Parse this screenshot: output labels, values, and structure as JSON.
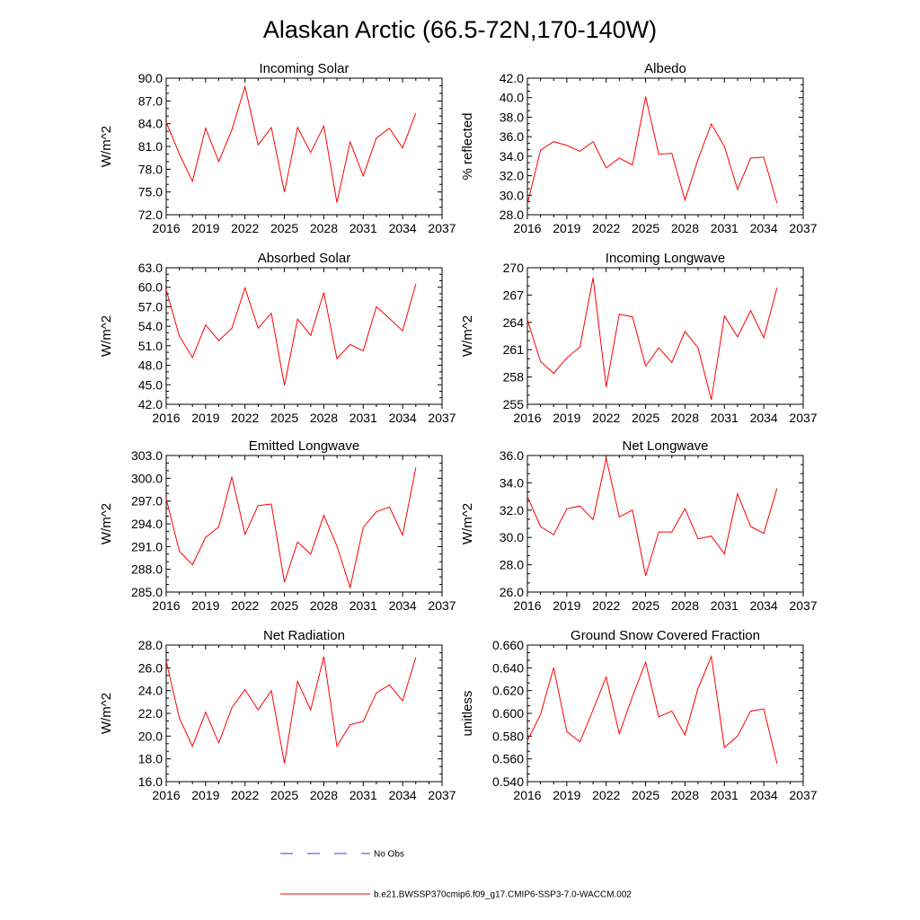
{
  "title": "Alaskan Arctic (66.5-72N,170-140W)",
  "legend": {
    "obs_label": "No Obs",
    "obs_color": "#3b3bd6",
    "model_label": "b.e21.BWSSP370cmip6.f09_g17.CMIP6-SSP3-7.0-WACCM.002",
    "model_color": "#ff0000"
  },
  "chart_data": [
    {
      "type": "line",
      "title": "Incoming Solar",
      "ylabel": "W/m^2",
      "xlabel": "",
      "xlim": [
        2016,
        2037
      ],
      "ylim": [
        72.0,
        90.0
      ],
      "xticks": [
        2016,
        2019,
        2022,
        2025,
        2028,
        2031,
        2034,
        2037
      ],
      "yticks": [
        "72.0",
        "75.0",
        "78.0",
        "81.0",
        "84.0",
        "87.0",
        "90.0"
      ],
      "x": [
        2016,
        2017,
        2018,
        2019,
        2020,
        2021,
        2022,
        2023,
        2024,
        2025,
        2026,
        2027,
        2028,
        2029,
        2030,
        2031,
        2032,
        2033,
        2034,
        2035
      ],
      "series": [
        {
          "name": "b.e21.BWSSP370cmip6.f09_g17.CMIP6-SSP3-7.0-WACCM.002",
          "values": [
            84.2,
            80.0,
            76.4,
            83.4,
            79.0,
            83.2,
            88.9,
            81.2,
            83.5,
            75.0,
            83.5,
            80.2,
            83.7,
            73.6,
            81.6,
            77.1,
            82.1,
            83.4,
            80.8,
            85.4
          ]
        }
      ]
    },
    {
      "type": "line",
      "title": "Albedo",
      "ylabel": "% reflected",
      "xlabel": "",
      "xlim": [
        2016,
        2037
      ],
      "ylim": [
        28.0,
        42.0
      ],
      "xticks": [
        2016,
        2019,
        2022,
        2025,
        2028,
        2031,
        2034,
        2037
      ],
      "yticks": [
        "28.0",
        "30.0",
        "32.0",
        "34.0",
        "36.0",
        "38.0",
        "40.0",
        "42.0"
      ],
      "x": [
        2016,
        2017,
        2018,
        2019,
        2020,
        2021,
        2022,
        2023,
        2024,
        2025,
        2026,
        2027,
        2028,
        2029,
        2030,
        2031,
        2032,
        2033,
        2034,
        2035
      ],
      "series": [
        {
          "name": "b.e21.BWSSP370cmip6.f09_g17.CMIP6-SSP3-7.0-WACCM.002",
          "values": [
            29.1,
            34.6,
            35.5,
            35.1,
            34.5,
            35.5,
            32.8,
            33.8,
            33.1,
            40.1,
            34.2,
            34.3,
            29.5,
            33.7,
            37.3,
            35.0,
            30.6,
            33.8,
            33.9,
            29.2
          ]
        }
      ]
    },
    {
      "type": "line",
      "title": "Absorbed Solar",
      "ylabel": "W/m^2",
      "xlabel": "",
      "xlim": [
        2016,
        2037
      ],
      "ylim": [
        42.0,
        63.0
      ],
      "xticks": [
        2016,
        2019,
        2022,
        2025,
        2028,
        2031,
        2034,
        2037
      ],
      "yticks": [
        "42.0",
        "45.0",
        "48.0",
        "51.0",
        "54.0",
        "57.0",
        "60.0",
        "63.0"
      ],
      "x": [
        2016,
        2017,
        2018,
        2019,
        2020,
        2021,
        2022,
        2023,
        2024,
        2025,
        2026,
        2027,
        2028,
        2029,
        2030,
        2031,
        2032,
        2033,
        2034,
        2035
      ],
      "series": [
        {
          "name": "b.e21.BWSSP370cmip6.f09_g17.CMIP6-SSP3-7.0-WACCM.002",
          "values": [
            59.6,
            52.5,
            49.2,
            54.2,
            51.8,
            53.7,
            59.9,
            53.7,
            56.0,
            44.9,
            55.1,
            52.6,
            59.2,
            49.0,
            51.2,
            50.2,
            57.0,
            55.2,
            53.3,
            60.5
          ]
        }
      ]
    },
    {
      "type": "line",
      "title": "Incoming Longwave",
      "ylabel": "W/m^2",
      "xlabel": "",
      "xlim": [
        2016,
        2037
      ],
      "ylim": [
        255,
        270
      ],
      "xticks": [
        2016,
        2019,
        2022,
        2025,
        2028,
        2031,
        2034,
        2037
      ],
      "yticks": [
        "255",
        "258",
        "261",
        "264",
        "267",
        "270"
      ],
      "x": [
        2016,
        2017,
        2018,
        2019,
        2020,
        2021,
        2022,
        2023,
        2024,
        2025,
        2026,
        2027,
        2028,
        2029,
        2030,
        2031,
        2032,
        2033,
        2034,
        2035
      ],
      "series": [
        {
          "name": "b.e21.BWSSP370cmip6.f09_g17.CMIP6-SSP3-7.0-WACCM.002",
          "values": [
            264.3,
            259.7,
            258.4,
            260.1,
            261.3,
            268.9,
            256.9,
            264.9,
            264.6,
            259.2,
            261.2,
            259.6,
            263.0,
            261.2,
            255.5,
            264.7,
            262.4,
            265.3,
            262.3,
            267.8
          ]
        }
      ]
    },
    {
      "type": "line",
      "title": "Emitted Longwave",
      "ylabel": "W/m^2",
      "xlabel": "",
      "xlim": [
        2016,
        2037
      ],
      "ylim": [
        285.0,
        303.0
      ],
      "xticks": [
        2016,
        2019,
        2022,
        2025,
        2028,
        2031,
        2034,
        2037
      ],
      "yticks": [
        "285.0",
        "288.0",
        "291.0",
        "294.0",
        "297.0",
        "300.0",
        "303.0"
      ],
      "x": [
        2016,
        2017,
        2018,
        2019,
        2020,
        2021,
        2022,
        2023,
        2024,
        2025,
        2026,
        2027,
        2028,
        2029,
        2030,
        2031,
        2032,
        2033,
        2034,
        2035
      ],
      "series": [
        {
          "name": "b.e21.BWSSP370cmip6.f09_g17.CMIP6-SSP3-7.0-WACCM.002",
          "values": [
            297.3,
            290.4,
            288.6,
            292.2,
            293.6,
            300.2,
            292.6,
            296.4,
            296.6,
            286.3,
            291.6,
            290.0,
            295.1,
            291.1,
            285.6,
            293.5,
            295.6,
            296.2,
            292.5,
            301.4
          ]
        }
      ]
    },
    {
      "type": "line",
      "title": "Net Longwave",
      "ylabel": "W/m^2",
      "xlabel": "",
      "xlim": [
        2016,
        2037
      ],
      "ylim": [
        26.0,
        36.0
      ],
      "xticks": [
        2016,
        2019,
        2022,
        2025,
        2028,
        2031,
        2034,
        2037
      ],
      "yticks": [
        "26.0",
        "28.0",
        "30.0",
        "32.0",
        "34.0",
        "36.0"
      ],
      "x": [
        2016,
        2017,
        2018,
        2019,
        2020,
        2021,
        2022,
        2023,
        2024,
        2025,
        2026,
        2027,
        2028,
        2029,
        2030,
        2031,
        2032,
        2033,
        2034,
        2035
      ],
      "series": [
        {
          "name": "b.e21.BWSSP370cmip6.f09_g17.CMIP6-SSP3-7.0-WACCM.002",
          "values": [
            33.0,
            30.8,
            30.2,
            32.1,
            32.3,
            31.3,
            35.8,
            31.5,
            32.0,
            27.2,
            30.4,
            30.4,
            32.1,
            29.9,
            30.1,
            28.8,
            33.2,
            30.8,
            30.3,
            33.6
          ]
        }
      ]
    },
    {
      "type": "line",
      "title": "Net Radiation",
      "ylabel": "W/m^2",
      "xlabel": "",
      "xlim": [
        2016,
        2037
      ],
      "ylim": [
        16.0,
        28.0
      ],
      "xticks": [
        2016,
        2019,
        2022,
        2025,
        2028,
        2031,
        2034,
        2037
      ],
      "yticks": [
        "16.0",
        "18.0",
        "20.0",
        "22.0",
        "24.0",
        "26.0",
        "28.0"
      ],
      "x": [
        2016,
        2017,
        2018,
        2019,
        2020,
        2021,
        2022,
        2023,
        2024,
        2025,
        2026,
        2027,
        2028,
        2029,
        2030,
        2031,
        2032,
        2033,
        2034,
        2035
      ],
      "series": [
        {
          "name": "b.e21.BWSSP370cmip6.f09_g17.CMIP6-SSP3-7.0-WACCM.002",
          "values": [
            26.6,
            21.6,
            19.1,
            22.1,
            19.4,
            22.5,
            24.1,
            22.3,
            24.0,
            17.6,
            24.8,
            22.3,
            27.0,
            19.1,
            21.0,
            21.3,
            23.8,
            24.5,
            23.1,
            26.9
          ]
        }
      ]
    },
    {
      "type": "line",
      "title": "Ground Snow Covered Fraction",
      "ylabel": "unitless",
      "xlabel": "",
      "xlim": [
        2016,
        2037
      ],
      "ylim": [
        0.54,
        0.66
      ],
      "xticks": [
        2016,
        2019,
        2022,
        2025,
        2028,
        2031,
        2034,
        2037
      ],
      "yticks": [
        "0.540",
        "0.560",
        "0.580",
        "0.600",
        "0.620",
        "0.640",
        "0.660"
      ],
      "x": [
        2016,
        2017,
        2018,
        2019,
        2020,
        2021,
        2022,
        2023,
        2024,
        2025,
        2026,
        2027,
        2028,
        2029,
        2030,
        2031,
        2032,
        2033,
        2034,
        2035
      ],
      "series": [
        {
          "name": "b.e21.BWSSP370cmip6.f09_g17.CMIP6-SSP3-7.0-WACCM.002",
          "values": [
            0.576,
            0.599,
            0.64,
            0.584,
            0.575,
            0.603,
            0.632,
            0.582,
            0.615,
            0.645,
            0.597,
            0.602,
            0.581,
            0.622,
            0.65,
            0.57,
            0.58,
            0.602,
            0.604,
            0.556
          ]
        }
      ]
    }
  ]
}
